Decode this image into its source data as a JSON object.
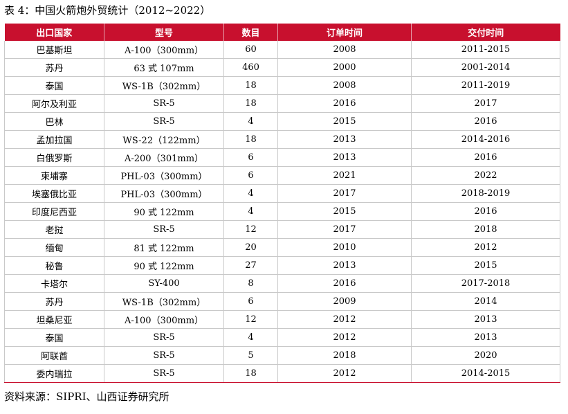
{
  "title": "表 4：中国火箭炮外贸统计（2012~2022）",
  "table": {
    "headers": [
      "出口国家",
      "型号",
      "数目",
      "订单时间",
      "交付时间"
    ],
    "rows": [
      [
        "巴基斯坦",
        "A-100（300mm）",
        "60",
        "2008",
        "2011-2015"
      ],
      [
        "苏丹",
        "63 式 107mm",
        "460",
        "2000",
        "2001-2014"
      ],
      [
        "泰国",
        "WS-1B（302mm）",
        "18",
        "2008",
        "2011-2019"
      ],
      [
        "阿尔及利亚",
        "SR-5",
        "18",
        "2016",
        "2017"
      ],
      [
        "巴林",
        "SR-5",
        "4",
        "2015",
        "2016"
      ],
      [
        "孟加拉国",
        "WS-22（122mm）",
        "18",
        "2013",
        "2014-2016"
      ],
      [
        "白俄罗斯",
        "A-200（301mm）",
        "6",
        "2013",
        "2016"
      ],
      [
        "柬埔寨",
        "PHL-03（300mm）",
        "6",
        "2021",
        "2022"
      ],
      [
        "埃塞俄比亚",
        "PHL-03（300mm）",
        "4",
        "2017",
        "2018-2019"
      ],
      [
        "印度尼西亚",
        "90 式 122mm",
        "4",
        "2015",
        "2016"
      ],
      [
        "老挝",
        "SR-5",
        "12",
        "2017",
        "2018"
      ],
      [
        "缅甸",
        "81 式 122mm",
        "20",
        "2010",
        "2012"
      ],
      [
        "秘鲁",
        "90 式 122mm",
        "27",
        "2013",
        "2015"
      ],
      [
        "卡塔尔",
        "SY-400",
        "8",
        "2016",
        "2017-2018"
      ],
      [
        "苏丹",
        "WS-1B（302mm）",
        "6",
        "2009",
        "2014"
      ],
      [
        "坦桑尼亚",
        "A-100（300mm）",
        "12",
        "2012",
        "2013"
      ],
      [
        "泰国",
        "SR-5",
        "4",
        "2012",
        "2013"
      ],
      [
        "阿联酋",
        "SR-5",
        "5",
        "2018",
        "2020"
      ],
      [
        "委内瑞拉",
        "SR-5",
        "18",
        "2012",
        "2014-2015"
      ]
    ]
  },
  "source": "资料来源：SIPRI、山西证券研究所",
  "colors": {
    "header_background": "#c8102e",
    "header_text": "#ffffff",
    "grid_line": "#c9c9c9"
  }
}
